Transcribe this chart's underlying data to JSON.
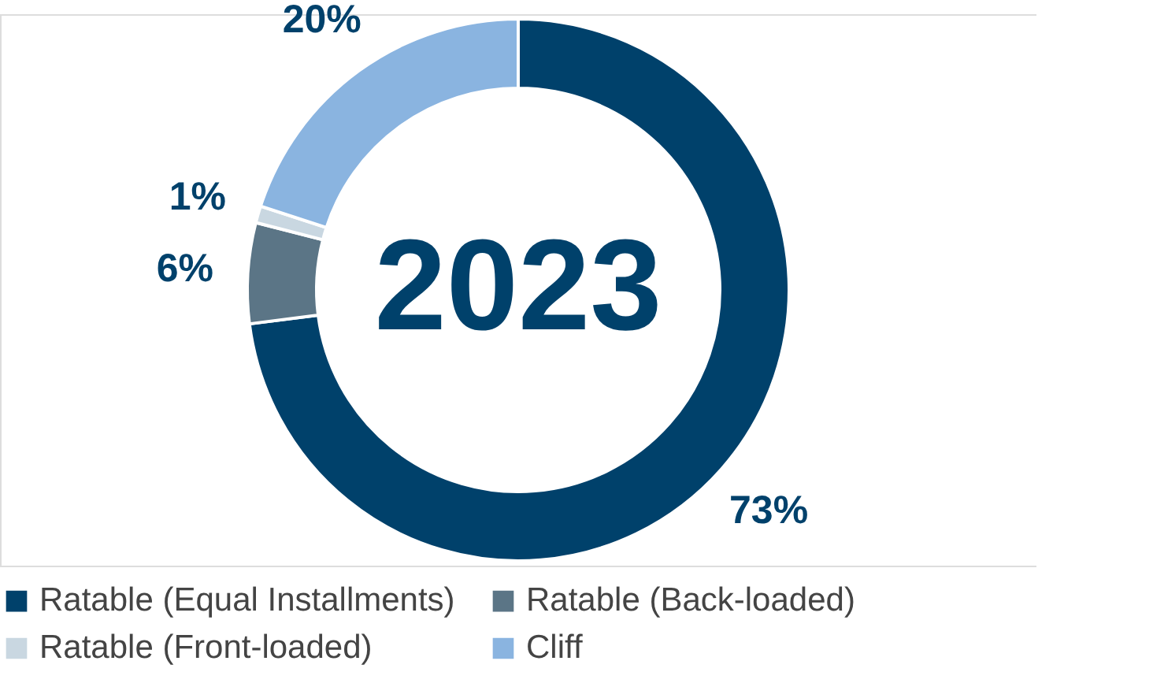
{
  "chart_data": {
    "type": "donut",
    "title": "2023",
    "categories": [
      "Ratable (Equal Installments)",
      "Ratable (Back-loaded)",
      "Ratable (Front-loaded)",
      "Cliff"
    ],
    "values": [
      73,
      6,
      1,
      20
    ],
    "colors": [
      "#00416b",
      "#5b7586",
      "#c9d7e1",
      "#8ab4e0"
    ],
    "value_labels": [
      "73%",
      "6%",
      "1%",
      "20%"
    ],
    "legend": "bottom"
  }
}
